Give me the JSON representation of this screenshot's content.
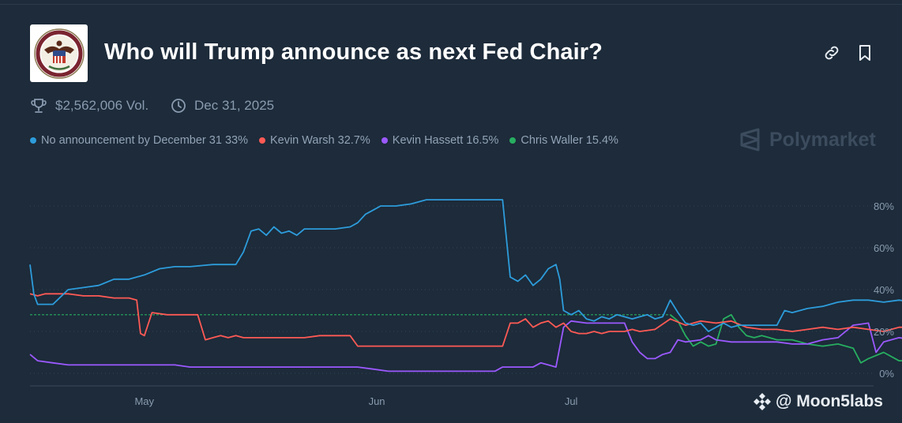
{
  "market": {
    "title": "Who will Trump announce as next Fed Chair?",
    "volume": "$2,562,006 Vol.",
    "end_date": "Dec 31, 2025",
    "brand": "Polymarket",
    "logo_icon": "federal-reserve-seal",
    "actions": [
      "link-icon",
      "bookmark-icon"
    ]
  },
  "legend": [
    {
      "label": "No announcement by December 31 33%",
      "color": "#2d9cdb"
    },
    {
      "label": "Kevin Warsh 32.7%",
      "color": "#ff5a55"
    },
    {
      "label": "Kevin Hassett 16.5%",
      "color": "#9b59ff"
    },
    {
      "label": "Chris Waller 15.4%",
      "color": "#27ae60"
    }
  ],
  "watermark": "@ Moon5labs",
  "chart_data": {
    "type": "line",
    "x_unit": "days since Apr 16, 2025",
    "x_tick_labels": [
      "May",
      "Jun",
      "Jul"
    ],
    "y_tick_labels": [
      "80%",
      "60%",
      "40%",
      "20%",
      "0%"
    ],
    "ylim": [
      0,
      85
    ],
    "grid": true,
    "series": [
      {
        "name": "No announcement by December 31",
        "color": "#2d9cdb",
        "points": [
          [
            0,
            52
          ],
          [
            0.5,
            38
          ],
          [
            1,
            33
          ],
          [
            3,
            33
          ],
          [
            5,
            40
          ],
          [
            7,
            41
          ],
          [
            9,
            42
          ],
          [
            11,
            45
          ],
          [
            13,
            45
          ],
          [
            15,
            47
          ],
          [
            17,
            50
          ],
          [
            19,
            51
          ],
          [
            21,
            51
          ],
          [
            24,
            52
          ],
          [
            27,
            52
          ],
          [
            28,
            58
          ],
          [
            29,
            68
          ],
          [
            30,
            69
          ],
          [
            31,
            66
          ],
          [
            32,
            70
          ],
          [
            33,
            67
          ],
          [
            34,
            68
          ],
          [
            35,
            66
          ],
          [
            36,
            69
          ],
          [
            38,
            69
          ],
          [
            40,
            69
          ],
          [
            42,
            70
          ],
          [
            43,
            72
          ],
          [
            44,
            76
          ],
          [
            45,
            78
          ],
          [
            46,
            80
          ],
          [
            48,
            80
          ],
          [
            50,
            81
          ],
          [
            51,
            82
          ],
          [
            52,
            83
          ],
          [
            55,
            83
          ],
          [
            58,
            83
          ],
          [
            60,
            83
          ],
          [
            62,
            83
          ],
          [
            63,
            46
          ],
          [
            64,
            44
          ],
          [
            65,
            47
          ],
          [
            66,
            42
          ],
          [
            67,
            45
          ],
          [
            68,
            50
          ],
          [
            69,
            52
          ],
          [
            69.5,
            45
          ],
          [
            70,
            30
          ],
          [
            71,
            28
          ],
          [
            72,
            30
          ],
          [
            73,
            26
          ],
          [
            74,
            25
          ],
          [
            75,
            27
          ],
          [
            76,
            26
          ],
          [
            77,
            28
          ],
          [
            78,
            27
          ],
          [
            79,
            26
          ],
          [
            80,
            27
          ],
          [
            81,
            28
          ],
          [
            82,
            26
          ],
          [
            83,
            27
          ],
          [
            84,
            35
          ],
          [
            85,
            29
          ],
          [
            86,
            24
          ],
          [
            87,
            23
          ],
          [
            88,
            24
          ],
          [
            89,
            20
          ],
          [
            90,
            22
          ],
          [
            91,
            24
          ],
          [
            92,
            22
          ],
          [
            93,
            23
          ],
          [
            94,
            23
          ],
          [
            95,
            23
          ],
          [
            96,
            23
          ],
          [
            97,
            23
          ],
          [
            98,
            23
          ],
          [
            99,
            30
          ],
          [
            100,
            29
          ],
          [
            102,
            31
          ],
          [
            104,
            32
          ],
          [
            106,
            34
          ],
          [
            108,
            35
          ],
          [
            110,
            35
          ],
          [
            112,
            34
          ],
          [
            114,
            35
          ],
          [
            116,
            34
          ],
          [
            118,
            33
          ],
          [
            120,
            31
          ],
          [
            122,
            29
          ],
          [
            124,
            31
          ],
          [
            126,
            32
          ],
          [
            128,
            33
          ],
          [
            129,
            41
          ],
          [
            130,
            41
          ],
          [
            132,
            40
          ],
          [
            134,
            42
          ],
          [
            135,
            43
          ],
          [
            136,
            41
          ],
          [
            137,
            38
          ],
          [
            138,
            32
          ],
          [
            139,
            28
          ],
          [
            140,
            31
          ],
          [
            141,
            33
          ]
        ]
      },
      {
        "name": "Kevin Warsh",
        "color": "#ff5a55",
        "points": [
          [
            0,
            38
          ],
          [
            1,
            37
          ],
          [
            2,
            38
          ],
          [
            3,
            38
          ],
          [
            5,
            38
          ],
          [
            7,
            37
          ],
          [
            9,
            37
          ],
          [
            11,
            36
          ],
          [
            13,
            36
          ],
          [
            14,
            35
          ],
          [
            14.5,
            19
          ],
          [
            15,
            18
          ],
          [
            16,
            29
          ],
          [
            18,
            28
          ],
          [
            20,
            28
          ],
          [
            22,
            28
          ],
          [
            23,
            16
          ],
          [
            24,
            17
          ],
          [
            25,
            18
          ],
          [
            26,
            17
          ],
          [
            27,
            18
          ],
          [
            28,
            17
          ],
          [
            30,
            17
          ],
          [
            32,
            17
          ],
          [
            34,
            17
          ],
          [
            36,
            17
          ],
          [
            38,
            18
          ],
          [
            40,
            18
          ],
          [
            42,
            18
          ],
          [
            43,
            13
          ],
          [
            45,
            13
          ],
          [
            47,
            13
          ],
          [
            49,
            13
          ],
          [
            51,
            13
          ],
          [
            53,
            13
          ],
          [
            55,
            13
          ],
          [
            57,
            13
          ],
          [
            59,
            13
          ],
          [
            61,
            13
          ],
          [
            62,
            13
          ],
          [
            63,
            24
          ],
          [
            64,
            24
          ],
          [
            65,
            26
          ],
          [
            66,
            22
          ],
          [
            67,
            24
          ],
          [
            68,
            25
          ],
          [
            69,
            22
          ],
          [
            70,
            24
          ],
          [
            71,
            20
          ],
          [
            72,
            19
          ],
          [
            73,
            19
          ],
          [
            74,
            20
          ],
          [
            75,
            19
          ],
          [
            76,
            20
          ],
          [
            77,
            20
          ],
          [
            78,
            20
          ],
          [
            79,
            21
          ],
          [
            80,
            20
          ],
          [
            82,
            21
          ],
          [
            84,
            26
          ],
          [
            86,
            23
          ],
          [
            88,
            25
          ],
          [
            90,
            24
          ],
          [
            92,
            25
          ],
          [
            94,
            22
          ],
          [
            96,
            21
          ],
          [
            98,
            21
          ],
          [
            100,
            20
          ],
          [
            102,
            21
          ],
          [
            104,
            22
          ],
          [
            106,
            21
          ],
          [
            108,
            22
          ],
          [
            110,
            21
          ],
          [
            112,
            20
          ],
          [
            114,
            22
          ],
          [
            116,
            22
          ],
          [
            118,
            21
          ],
          [
            120,
            22
          ],
          [
            122,
            22
          ],
          [
            124,
            24
          ],
          [
            126,
            23
          ],
          [
            128,
            23
          ],
          [
            130,
            21
          ],
          [
            132,
            22
          ],
          [
            134,
            23
          ],
          [
            136,
            24
          ],
          [
            137,
            25
          ],
          [
            138,
            31
          ],
          [
            139,
            33
          ],
          [
            140,
            33
          ],
          [
            141,
            33
          ]
        ]
      },
      {
        "name": "Kevin Hassett",
        "color": "#9b59ff",
        "points": [
          [
            0,
            9
          ],
          [
            1,
            6
          ],
          [
            3,
            5
          ],
          [
            5,
            4
          ],
          [
            7,
            4
          ],
          [
            9,
            4
          ],
          [
            11,
            4
          ],
          [
            13,
            4
          ],
          [
            15,
            4
          ],
          [
            17,
            4
          ],
          [
            19,
            4
          ],
          [
            21,
            3
          ],
          [
            23,
            3
          ],
          [
            25,
            3
          ],
          [
            27,
            3
          ],
          [
            29,
            3
          ],
          [
            31,
            3
          ],
          [
            33,
            3
          ],
          [
            35,
            3
          ],
          [
            37,
            3
          ],
          [
            39,
            3
          ],
          [
            41,
            3
          ],
          [
            43,
            3
          ],
          [
            45,
            2
          ],
          [
            47,
            1
          ],
          [
            49,
            1
          ],
          [
            51,
            1
          ],
          [
            53,
            1
          ],
          [
            55,
            1
          ],
          [
            57,
            1
          ],
          [
            59,
            1
          ],
          [
            61,
            1
          ],
          [
            62,
            3
          ],
          [
            63,
            3
          ],
          [
            64,
            3
          ],
          [
            65,
            3
          ],
          [
            66,
            3
          ],
          [
            67,
            5
          ],
          [
            68,
            4
          ],
          [
            69,
            3
          ],
          [
            70,
            22
          ],
          [
            71,
            25
          ],
          [
            73,
            24
          ],
          [
            75,
            24
          ],
          [
            77,
            24
          ],
          [
            78,
            24
          ],
          [
            79,
            15
          ],
          [
            80,
            10
          ],
          [
            81,
            7
          ],
          [
            82,
            7
          ],
          [
            83,
            9
          ],
          [
            84,
            10
          ],
          [
            85,
            16
          ],
          [
            86,
            15
          ],
          [
            88,
            16
          ],
          [
            89,
            18
          ],
          [
            90,
            16
          ],
          [
            92,
            15
          ],
          [
            94,
            15
          ],
          [
            96,
            15
          ],
          [
            98,
            15
          ],
          [
            100,
            14
          ],
          [
            102,
            14
          ],
          [
            104,
            16
          ],
          [
            106,
            17
          ],
          [
            108,
            23
          ],
          [
            110,
            24
          ],
          [
            111,
            10
          ],
          [
            112,
            15
          ],
          [
            114,
            17
          ],
          [
            116,
            16
          ],
          [
            118,
            15
          ],
          [
            120,
            14
          ],
          [
            122,
            14
          ],
          [
            124,
            14
          ],
          [
            126,
            15
          ],
          [
            128,
            14
          ],
          [
            130,
            14
          ],
          [
            132,
            14
          ],
          [
            134,
            15
          ],
          [
            136,
            14
          ],
          [
            138,
            14
          ],
          [
            139,
            20
          ],
          [
            140,
            16
          ],
          [
            141,
            17
          ]
        ]
      },
      {
        "name": "Chris Waller",
        "color": "#27ae60",
        "points": [
          [
            0,
            28
          ],
          [
            10,
            28
          ],
          [
            20,
            28
          ],
          [
            30,
            28
          ],
          [
            40,
            28
          ],
          [
            50,
            28
          ],
          [
            60,
            28
          ],
          [
            70,
            28
          ],
          [
            80,
            28
          ],
          [
            84,
            28
          ],
          [
            85,
            25
          ],
          [
            86,
            18
          ],
          [
            87,
            13
          ],
          [
            88,
            15
          ],
          [
            89,
            13
          ],
          [
            90,
            14
          ],
          [
            91,
            26
          ],
          [
            92,
            28
          ],
          [
            93,
            22
          ],
          [
            94,
            18
          ],
          [
            95,
            17
          ],
          [
            96,
            18
          ],
          [
            97,
            17
          ],
          [
            98,
            16
          ],
          [
            100,
            16
          ],
          [
            102,
            14
          ],
          [
            104,
            13
          ],
          [
            106,
            14
          ],
          [
            108,
            12
          ],
          [
            109,
            5
          ],
          [
            110,
            7
          ],
          [
            112,
            10
          ],
          [
            114,
            6
          ],
          [
            116,
            6
          ],
          [
            118,
            6
          ],
          [
            120,
            7
          ],
          [
            121,
            17
          ],
          [
            122,
            12
          ],
          [
            124,
            12
          ],
          [
            126,
            15
          ],
          [
            128,
            15
          ],
          [
            130,
            14
          ],
          [
            132,
            16
          ],
          [
            134,
            15
          ],
          [
            136,
            14
          ],
          [
            138,
            13
          ],
          [
            139,
            11
          ],
          [
            140,
            13
          ],
          [
            141,
            15
          ]
        ]
      }
    ]
  }
}
